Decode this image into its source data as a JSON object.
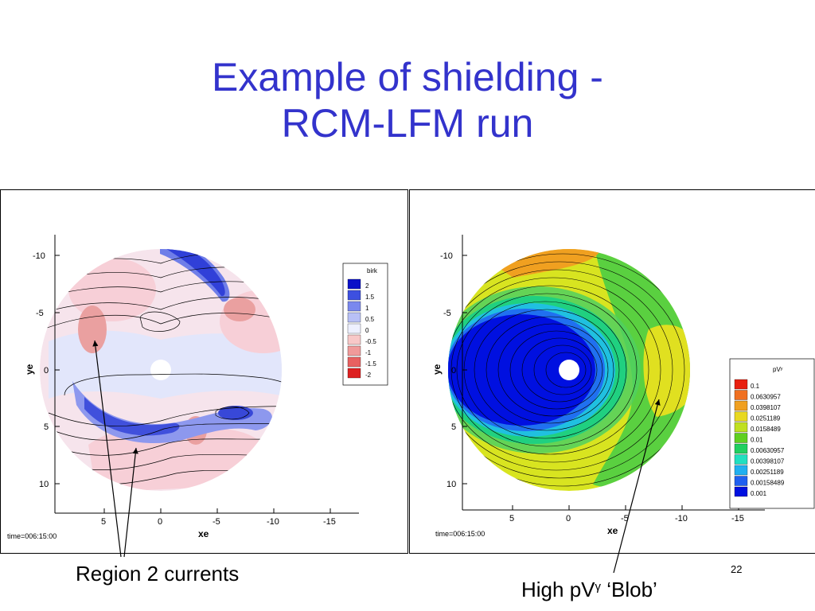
{
  "slide": {
    "title_line1": "Example of shielding -",
    "title_line2": "RCM-LFM run",
    "page_number": "22"
  },
  "colors": {
    "title": "#3333cc",
    "birk_positive": "#2233dd",
    "birk_negative": "#dd2222",
    "pv_low": "#0010e0",
    "pv_high": "#e82010"
  },
  "left_plot": {
    "xlabel": "xe",
    "ylabel": "ye",
    "x_ticks": [
      "5",
      "0",
      "-5",
      "-10",
      "-15"
    ],
    "y_ticks": [
      "-10",
      "-5",
      "0",
      "5",
      "10"
    ],
    "time": "time=006:15:00",
    "legend_title": "birk",
    "legend_levels": [
      "2",
      "1.5",
      "1",
      "0.5",
      "0",
      "-0.5",
      "-1",
      "-1.5",
      "-2"
    ],
    "legend_colors": [
      "#0a10c8",
      "#3d50e0",
      "#7a88ee",
      "#b8c0f6",
      "#eef0ff",
      "#f8c8c8",
      "#f09a9a",
      "#e86060",
      "#dd2020"
    ]
  },
  "right_plot": {
    "xlabel": "xe",
    "ylabel": "ye",
    "x_ticks": [
      "5",
      "0",
      "-5",
      "-10",
      "-15"
    ],
    "y_ticks": [
      "-10",
      "-5",
      "0",
      "5",
      "10"
    ],
    "time": "time=006:15:00",
    "legend_title": "pVʸ",
    "legend_levels": [
      "0.1",
      "0.0630957",
      "0.0398107",
      "0.0251189",
      "0.0158489",
      "0.01",
      "0.00630957",
      "0.00398107",
      "0.00251189",
      "0.00158489",
      "0.001"
    ],
    "legend_colors": [
      "#e82010",
      "#f07020",
      "#f0a020",
      "#e8d820",
      "#c0e020",
      "#60d020",
      "#20d060",
      "#20e0c0",
      "#20b0f0",
      "#2060f0",
      "#0010e0"
    ]
  },
  "callouts": {
    "region2": "Region 2 currents",
    "blob_prefix": "High pV",
    "blob_gamma": "γ",
    "blob_suffix": " ‘Blob’"
  }
}
